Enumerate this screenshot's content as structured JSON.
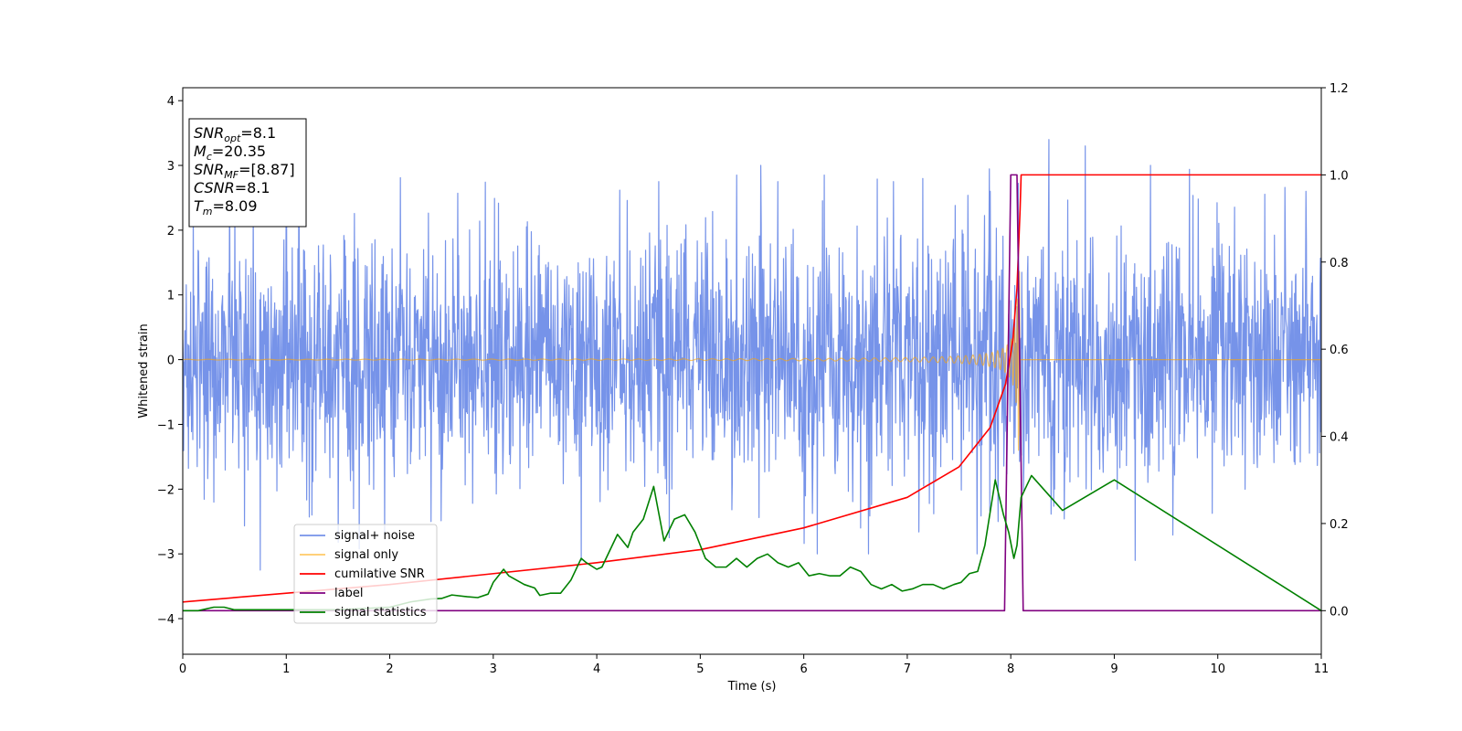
{
  "chart_data": {
    "type": "line",
    "xlabel": "Time (s)",
    "ylabel": "Whitened strain",
    "xlim": [
      0,
      11
    ],
    "ylim": [
      -4.55,
      4.2
    ],
    "y2lim": [
      -0.1,
      1.2
    ],
    "xticks": [
      0,
      1,
      2,
      3,
      4,
      5,
      6,
      7,
      8,
      9,
      10,
      11
    ],
    "yticks": [
      -4,
      -3,
      -2,
      -1,
      0,
      1,
      2,
      3,
      4
    ],
    "y2ticks": [
      "0.0",
      "0.2",
      "0.4",
      "0.6",
      "0.8",
      "1.0",
      "1.2"
    ],
    "grid": false,
    "legend_position": "lower-left",
    "info_box": {
      "position": "top-left",
      "lines": [
        {
          "sym": "SNR",
          "sub": "opt",
          "val": "=8.1"
        },
        {
          "sym": "M",
          "sub": "c",
          "val": "=20.35"
        },
        {
          "sym": "SNR",
          "sub": "MF",
          "val": "=[8.87]"
        },
        {
          "sym": "CSNR",
          "sub": "",
          "val": "=8.1"
        },
        {
          "sym": "T",
          "sub": "m",
          "val": "=8.09"
        }
      ]
    },
    "series": [
      {
        "name": "signal+ noise",
        "color": "#4169e1",
        "axis": "left",
        "kind": "noise",
        "envelope": 1.5,
        "peaks": [
          [
            0.1,
            2.4
          ],
          [
            0.3,
            -2.2
          ],
          [
            0.75,
            -3.25
          ],
          [
            1.0,
            2.2
          ],
          [
            1.25,
            -2.4
          ],
          [
            1.65,
            -2.3
          ],
          [
            1.95,
            -2.7
          ],
          [
            2.4,
            -2.5
          ],
          [
            3.85,
            -3.1
          ],
          [
            4.6,
            2.75
          ],
          [
            4.7,
            -2.75
          ],
          [
            5.35,
            2.85
          ],
          [
            5.75,
            2.75
          ],
          [
            6.2,
            2.85
          ],
          [
            6.55,
            -2.6
          ],
          [
            7.8,
            2.6
          ],
          [
            8.37,
            3.4
          ],
          [
            8.72,
            3.3
          ],
          [
            9.35,
            3.0
          ],
          [
            9.2,
            -3.1
          ],
          [
            10.85,
            2.6
          ]
        ]
      },
      {
        "name": "signal only",
        "color": "#ffa500",
        "axis": "left",
        "kind": "chirp",
        "t_merger": 8.09
      },
      {
        "name": "cumilative SNR",
        "color": "#ff0000",
        "axis": "right",
        "x": [
          0,
          2,
          4,
          5,
          6,
          7,
          7.5,
          7.8,
          7.95,
          8.02,
          8.06,
          8.09,
          8.1,
          11
        ],
        "y": [
          0.02,
          0.06,
          0.11,
          0.14,
          0.19,
          0.26,
          0.33,
          0.42,
          0.52,
          0.62,
          0.74,
          0.92,
          1.0,
          1.0
        ]
      },
      {
        "name": "label",
        "color": "#800080",
        "axis": "right",
        "x": [
          0,
          7.94,
          8.0,
          8.06,
          8.12,
          11
        ],
        "y": [
          0,
          0,
          1,
          1,
          0,
          0
        ]
      },
      {
        "name": "signal statistics",
        "color": "#008000",
        "axis": "right",
        "x": [
          0,
          0.15,
          0.3,
          0.4,
          0.5,
          1.0,
          1.5,
          2.0,
          2.2,
          2.4,
          2.5,
          2.6,
          2.75,
          2.85,
          2.95,
          3.0,
          3.1,
          3.15,
          3.3,
          3.4,
          3.45,
          3.55,
          3.65,
          3.75,
          3.85,
          3.9,
          4.0,
          4.05,
          4.15,
          4.2,
          4.3,
          4.35,
          4.45,
          4.55,
          4.65,
          4.75,
          4.85,
          4.95,
          5.05,
          5.15,
          5.25,
          5.35,
          5.45,
          5.55,
          5.65,
          5.75,
          5.85,
          5.95,
          6.05,
          6.15,
          6.25,
          6.35,
          6.45,
          6.55,
          6.65,
          6.75,
          6.85,
          6.95,
          7.05,
          7.15,
          7.25,
          7.35,
          7.45,
          7.52,
          7.6,
          7.68,
          7.75,
          7.85,
          7.93,
          7.98,
          8.03,
          8.06,
          8.1,
          8.2,
          8.5,
          9.0,
          11.0
        ],
        "y": [
          0.0,
          0.0,
          0.008,
          0.008,
          0.002,
          0.002,
          0.002,
          0.008,
          0.02,
          0.027,
          0.028,
          0.036,
          0.032,
          0.03,
          0.038,
          0.065,
          0.095,
          0.08,
          0.06,
          0.052,
          0.035,
          0.04,
          0.04,
          0.07,
          0.12,
          0.11,
          0.095,
          0.1,
          0.15,
          0.175,
          0.145,
          0.18,
          0.21,
          0.285,
          0.16,
          0.21,
          0.22,
          0.18,
          0.12,
          0.1,
          0.1,
          0.12,
          0.1,
          0.12,
          0.13,
          0.11,
          0.1,
          0.11,
          0.08,
          0.085,
          0.08,
          0.08,
          0.1,
          0.09,
          0.06,
          0.05,
          0.06,
          0.045,
          0.05,
          0.06,
          0.06,
          0.05,
          0.06,
          0.065,
          0.085,
          0.09,
          0.15,
          0.3,
          0.22,
          0.18,
          0.12,
          0.15,
          0.26,
          0.31,
          0.23,
          0.3,
          0.0
        ]
      }
    ]
  }
}
